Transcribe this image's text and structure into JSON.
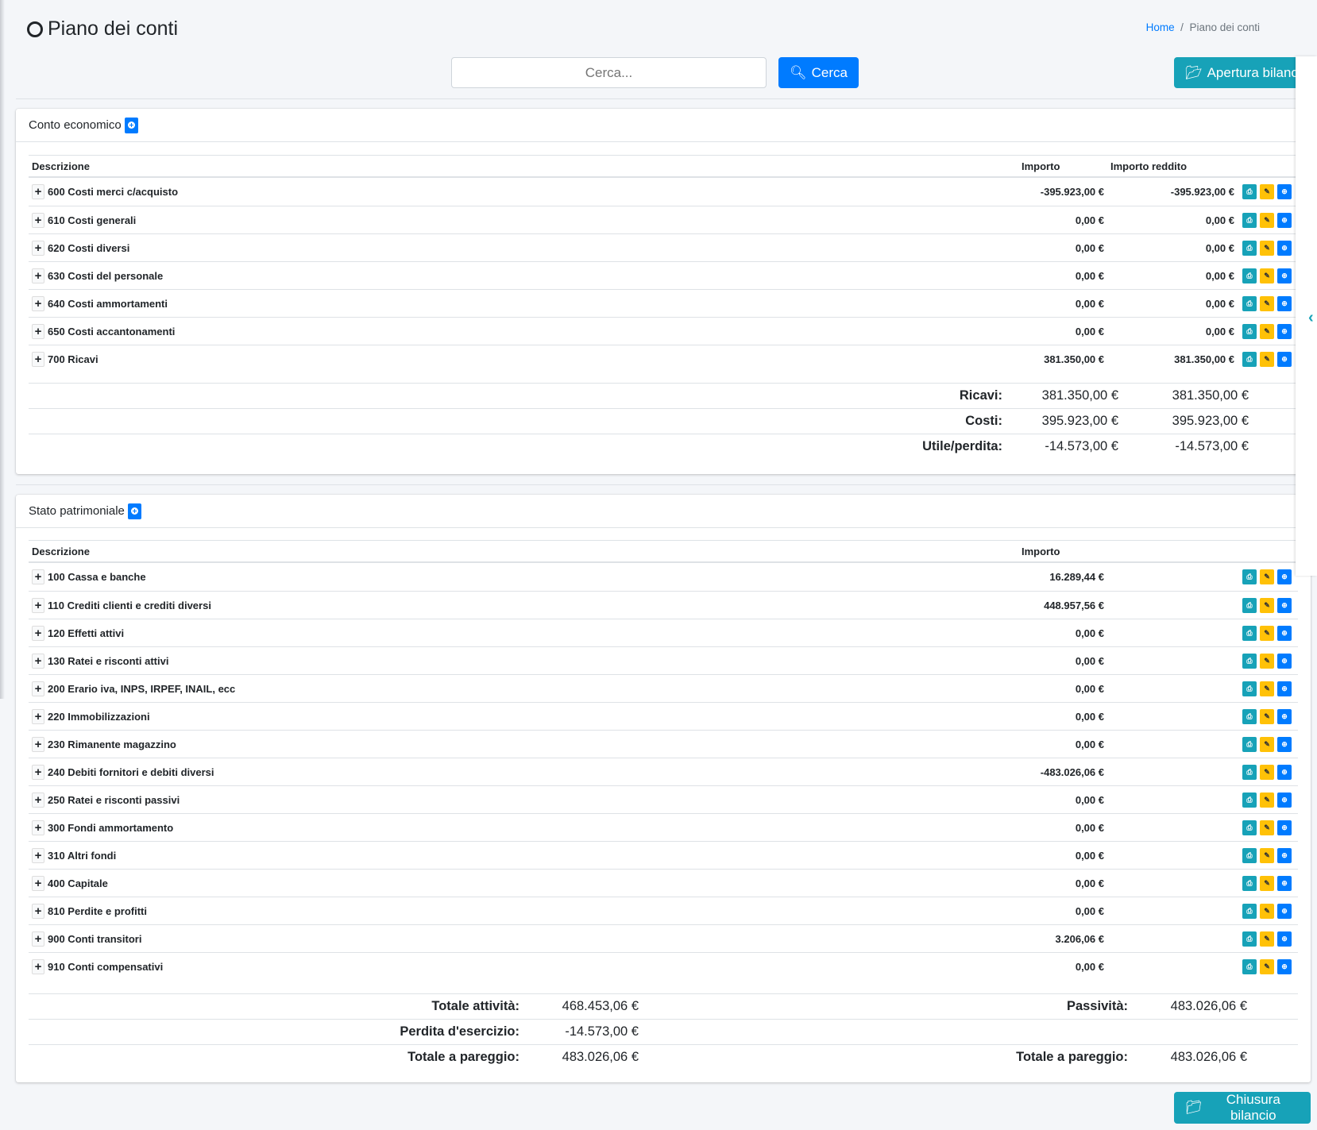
{
  "header": {
    "title": "Piano dei conti",
    "breadcrumb": [
      "Home",
      "Piano dei conti"
    ]
  },
  "search": {
    "placeholder": "Cerca...",
    "value": "",
    "button": "Cerca"
  },
  "buttons": {
    "apertura": "Apertura bilancio",
    "chiusura": "Chiusura bilancio"
  },
  "conto_economico": {
    "title": "Conto economico",
    "columns": [
      "Descrizione",
      "Importo",
      "Importo reddito"
    ],
    "rows": [
      {
        "desc": "600 Costi merci c/acquisto",
        "importo": "-395.923,00 €",
        "reddito": "-395.923,00 €"
      },
      {
        "desc": "610 Costi generali",
        "importo": "0,00 €",
        "reddito": "0,00 €"
      },
      {
        "desc": "620 Costi diversi",
        "importo": "0,00 €",
        "reddito": "0,00 €"
      },
      {
        "desc": "630 Costi del personale",
        "importo": "0,00 €",
        "reddito": "0,00 €"
      },
      {
        "desc": "640 Costi ammortamenti",
        "importo": "0,00 €",
        "reddito": "0,00 €"
      },
      {
        "desc": "650 Costi accantonamenti",
        "importo": "0,00 €",
        "reddito": "0,00 €"
      },
      {
        "desc": "700 Ricavi",
        "importo": "381.350,00 €",
        "reddito": "381.350,00 €"
      }
    ],
    "totals": [
      {
        "label": "Ricavi:",
        "importo": "381.350,00 €",
        "reddito": "381.350,00 €"
      },
      {
        "label": "Costi:",
        "importo": "395.923,00 €",
        "reddito": "395.923,00 €"
      },
      {
        "label": "Utile/perdita:",
        "importo": "-14.573,00 €",
        "reddito": "-14.573,00 €"
      }
    ]
  },
  "stato_patrimoniale": {
    "title": "Stato patrimoniale",
    "columns": [
      "Descrizione",
      "Importo"
    ],
    "rows": [
      {
        "desc": "100 Cassa e banche",
        "importo": "16.289,44 €"
      },
      {
        "desc": "110 Crediti clienti e crediti diversi",
        "importo": "448.957,56 €"
      },
      {
        "desc": "120 Effetti attivi",
        "importo": "0,00 €"
      },
      {
        "desc": "130 Ratei e risconti attivi",
        "importo": "0,00 €"
      },
      {
        "desc": "200 Erario iva, INPS, IRPEF, INAIL, ecc",
        "importo": "0,00 €"
      },
      {
        "desc": "220 Immobilizzazioni",
        "importo": "0,00 €"
      },
      {
        "desc": "230 Rimanente magazzino",
        "importo": "0,00 €"
      },
      {
        "desc": "240 Debiti fornitori e debiti diversi",
        "importo": "-483.026,06 €"
      },
      {
        "desc": "250 Ratei e risconti passivi",
        "importo": "0,00 €"
      },
      {
        "desc": "300 Fondi ammortamento",
        "importo": "0,00 €"
      },
      {
        "desc": "310 Altri fondi",
        "importo": "0,00 €"
      },
      {
        "desc": "400 Capitale",
        "importo": "0,00 €"
      },
      {
        "desc": "810 Perdite e profitti",
        "importo": "0,00 €"
      },
      {
        "desc": "900 Conti transitori",
        "importo": "3.206,06 €"
      },
      {
        "desc": "910 Conti compensativi",
        "importo": "0,00 €"
      }
    ],
    "totals": [
      {
        "label": "Totale attività:",
        "value": "468.453,06 €",
        "label2": "Passività:",
        "value2": "483.026,06 €"
      },
      {
        "label": "Perdita d'esercizio:",
        "value": "-14.573,00 €",
        "label2": "",
        "value2": ""
      },
      {
        "label": "Totale a pareggio:",
        "value": "483.026,06 €",
        "label2": "Totale a pareggio:",
        "value2": "483.026,06 €"
      }
    ]
  },
  "colors": {
    "primary": "#007bff",
    "info": "#17a2b8",
    "warning": "#ffc107",
    "background": "#f4f6f9"
  }
}
